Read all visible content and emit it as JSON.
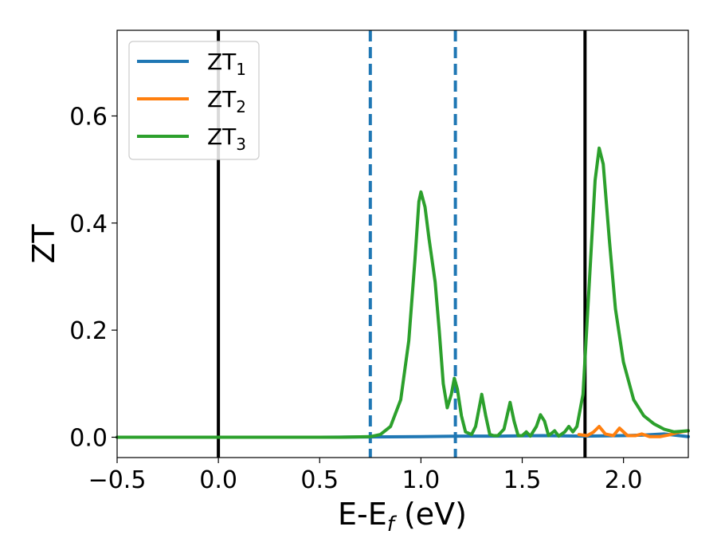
{
  "chart_data": {
    "type": "line",
    "title": "",
    "xlabel": {
      "main": "E-E",
      "sub": "f",
      "tail": " (eV)"
    },
    "ylabel": "ZT",
    "xlim": [
      -0.5,
      2.32
    ],
    "ylim": [
      -0.038,
      0.76
    ],
    "xticks": [
      -0.5,
      0.0,
      0.5,
      1.0,
      1.5,
      2.0
    ],
    "xtick_labels": [
      "−0.5",
      "0.0",
      "0.5",
      "1.0",
      "1.5",
      "2.0"
    ],
    "yticks": [
      0.0,
      0.2,
      0.4,
      0.6
    ],
    "ytick_labels": [
      "0.0",
      "0.2",
      "0.4",
      "0.6"
    ],
    "grid": false,
    "legend_position": "top-left",
    "vlines": [
      {
        "x": 0.0,
        "color": "#000000",
        "style": "solid"
      },
      {
        "x": 1.81,
        "color": "#000000",
        "style": "solid"
      },
      {
        "x": 0.75,
        "color": "#1f77b4",
        "style": "dashed"
      },
      {
        "x": 1.17,
        "color": "#1f77b4",
        "style": "dashed"
      }
    ],
    "series": [
      {
        "name": "ZT",
        "name_sub": "1",
        "color": "#1f77b4",
        "points": [
          [
            -0.5,
            0
          ],
          [
            0.5,
            0
          ],
          [
            0.75,
            0.0005
          ],
          [
            1.0,
            0.001
          ],
          [
            1.2,
            0.002
          ],
          [
            1.4,
            0.002
          ],
          [
            1.6,
            0.003
          ],
          [
            1.8,
            0.002
          ],
          [
            2.0,
            0.003
          ],
          [
            2.1,
            0.004
          ],
          [
            2.2,
            0.006
          ],
          [
            2.32,
            0.001
          ]
        ]
      },
      {
        "name": "ZT",
        "name_sub": "2",
        "color": "#ff7f0e",
        "points": [
          [
            1.78,
            0.005
          ],
          [
            1.82,
            0.003
          ],
          [
            1.85,
            0.009
          ],
          [
            1.88,
            0.02
          ],
          [
            1.91,
            0.006
          ],
          [
            1.95,
            0.003
          ],
          [
            1.98,
            0.017
          ],
          [
            2.02,
            0.003
          ],
          [
            2.06,
            0.003
          ],
          [
            2.09,
            0.006
          ],
          [
            2.13,
            0.001
          ],
          [
            2.18,
            0.001
          ],
          [
            2.22,
            0.004
          ],
          [
            2.27,
            0.009
          ],
          [
            2.32,
            0.012
          ]
        ]
      },
      {
        "name": "ZT",
        "name_sub": "3",
        "color": "#2ca02c",
        "points": [
          [
            -0.5,
            0
          ],
          [
            0.6,
            0
          ],
          [
            0.75,
            0.001
          ],
          [
            0.8,
            0.005
          ],
          [
            0.85,
            0.02
          ],
          [
            0.9,
            0.07
          ],
          [
            0.94,
            0.18
          ],
          [
            0.97,
            0.33
          ],
          [
            0.99,
            0.44
          ],
          [
            1.0,
            0.458
          ],
          [
            1.02,
            0.43
          ],
          [
            1.04,
            0.37
          ],
          [
            1.07,
            0.29
          ],
          [
            1.09,
            0.2
          ],
          [
            1.11,
            0.1
          ],
          [
            1.13,
            0.055
          ],
          [
            1.15,
            0.08
          ],
          [
            1.165,
            0.11
          ],
          [
            1.18,
            0.09
          ],
          [
            1.2,
            0.04
          ],
          [
            1.22,
            0.01
          ],
          [
            1.25,
            0.005
          ],
          [
            1.27,
            0.02
          ],
          [
            1.3,
            0.08
          ],
          [
            1.32,
            0.04
          ],
          [
            1.34,
            0.005
          ],
          [
            1.36,
            0.003
          ],
          [
            1.38,
            0.003
          ],
          [
            1.41,
            0.015
          ],
          [
            1.44,
            0.065
          ],
          [
            1.46,
            0.03
          ],
          [
            1.48,
            0.003
          ],
          [
            1.5,
            0.003
          ],
          [
            1.52,
            0.01
          ],
          [
            1.54,
            0.002
          ],
          [
            1.57,
            0.02
          ],
          [
            1.59,
            0.042
          ],
          [
            1.61,
            0.03
          ],
          [
            1.63,
            0.003
          ],
          [
            1.66,
            0.012
          ],
          [
            1.68,
            0.002
          ],
          [
            1.71,
            0.01
          ],
          [
            1.73,
            0.02
          ],
          [
            1.75,
            0.01
          ],
          [
            1.77,
            0.02
          ],
          [
            1.8,
            0.08
          ],
          [
            1.83,
            0.28
          ],
          [
            1.86,
            0.48
          ],
          [
            1.88,
            0.54
          ],
          [
            1.9,
            0.51
          ],
          [
            1.93,
            0.37
          ],
          [
            1.96,
            0.24
          ],
          [
            2.0,
            0.14
          ],
          [
            2.05,
            0.07
          ],
          [
            2.1,
            0.04
          ],
          [
            2.15,
            0.025
          ],
          [
            2.2,
            0.015
          ],
          [
            2.25,
            0.01
          ],
          [
            2.32,
            0.012
          ]
        ]
      }
    ]
  }
}
